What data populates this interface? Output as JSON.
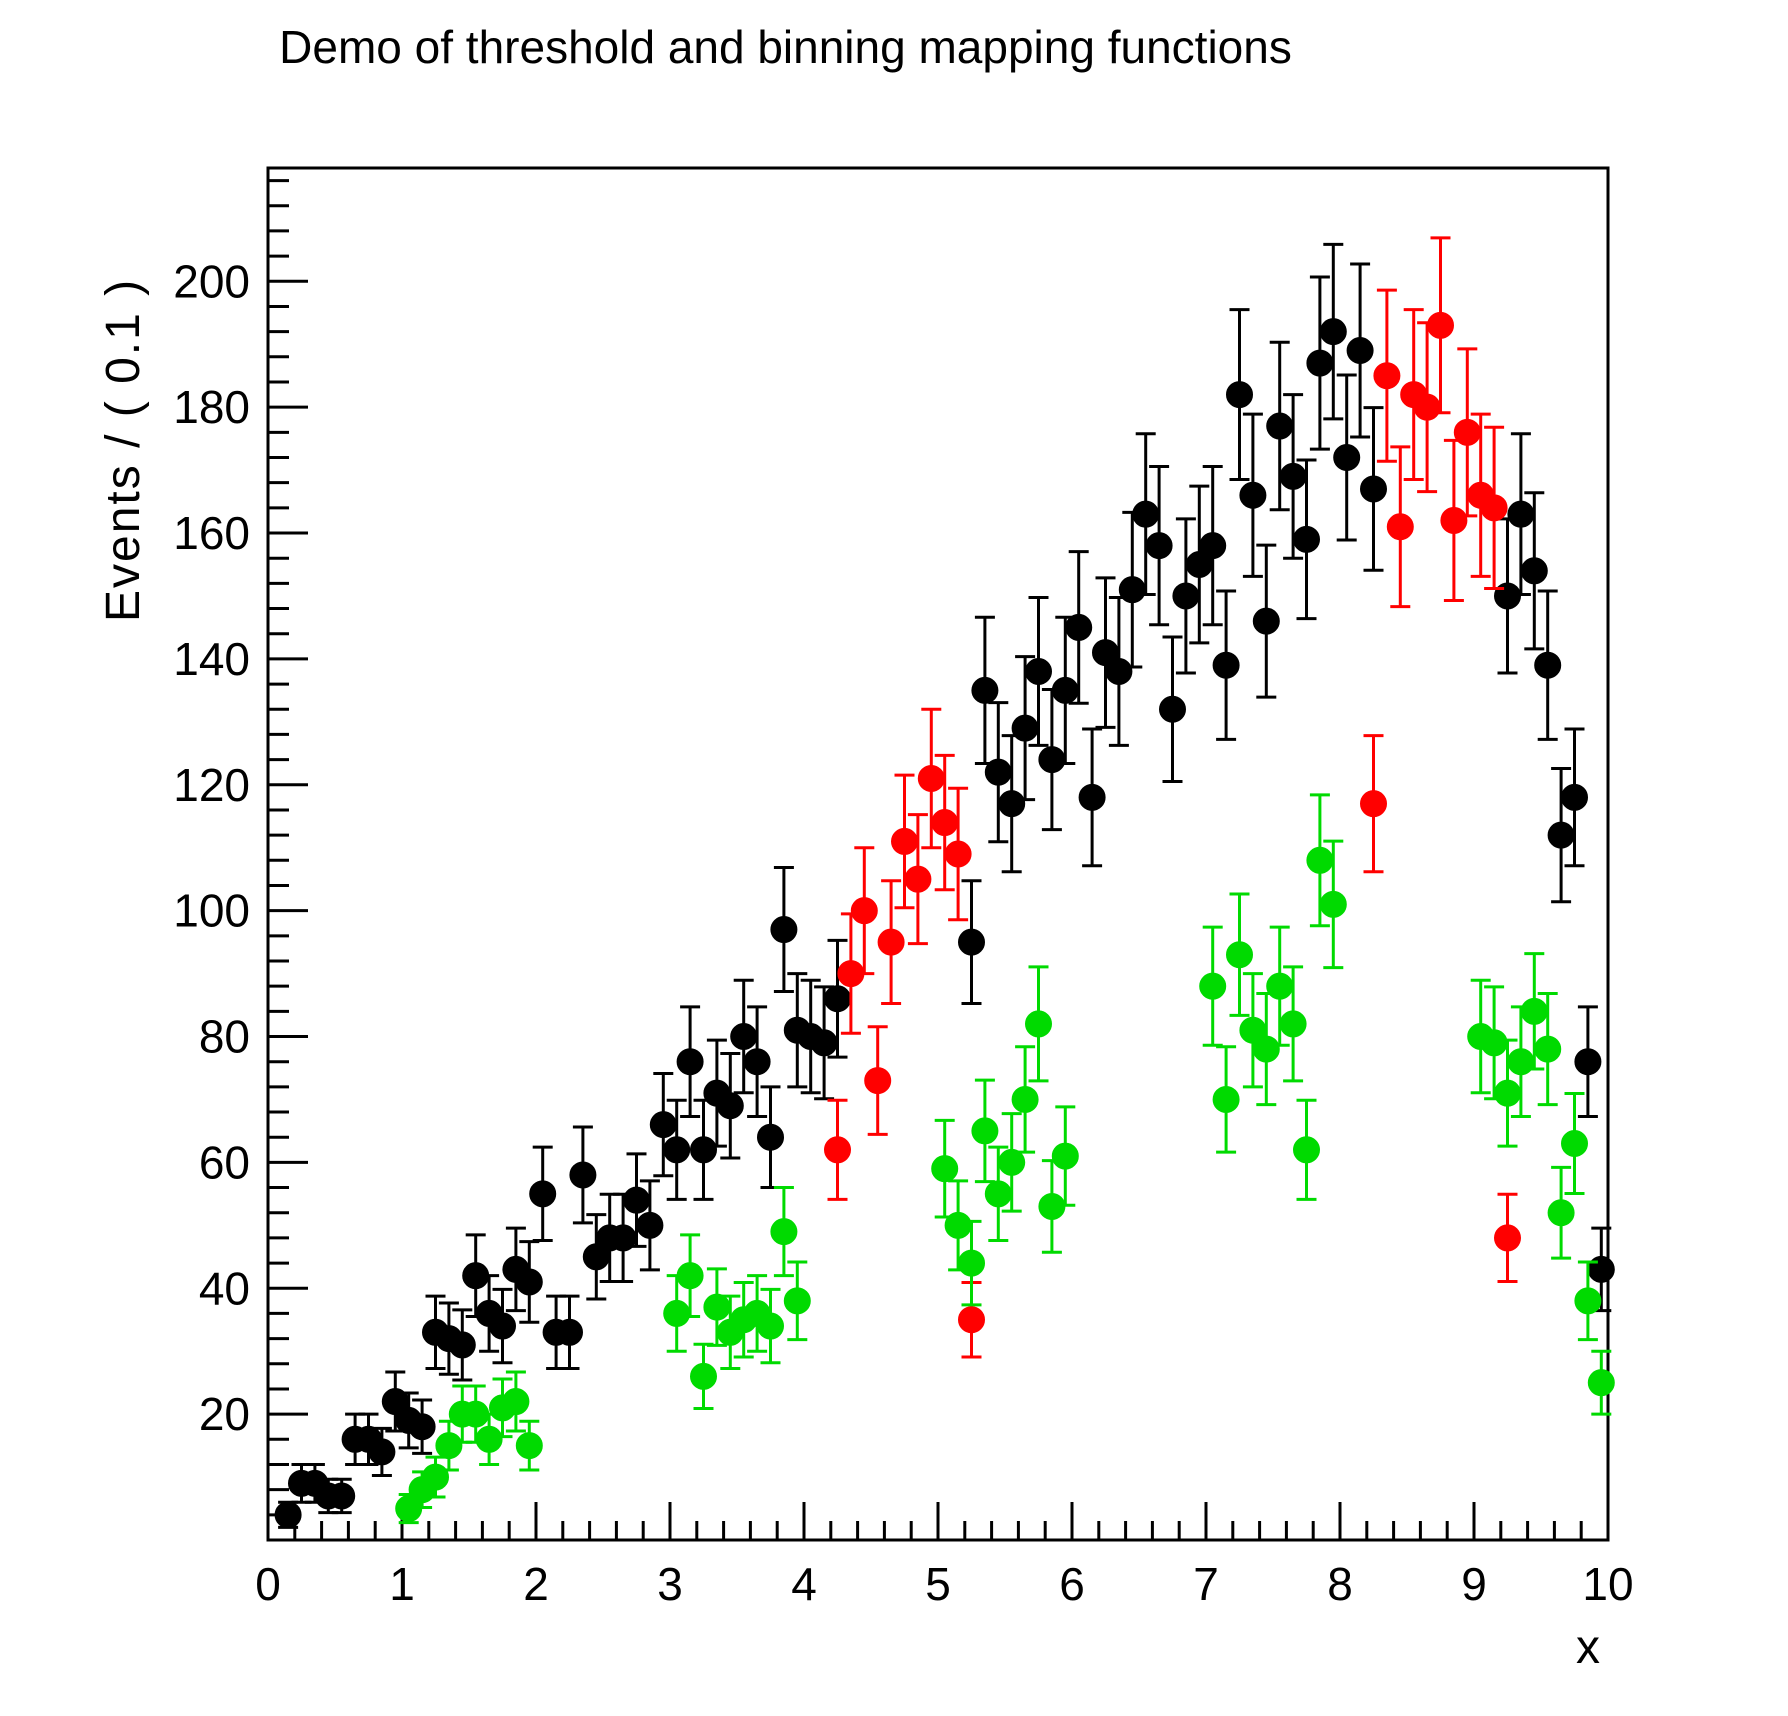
{
  "page": {
    "background": "#ffffff"
  },
  "chart_data": {
    "type": "scatter",
    "title": "Demo of threshold and binning mapping functions",
    "xlabel": "x",
    "ylabel": "Events / ( 0.1 )",
    "xlim": [
      0,
      10
    ],
    "ylim": [
      0,
      218
    ],
    "x_major_ticks": [
      0,
      1,
      2,
      3,
      4,
      5,
      6,
      7,
      8,
      9,
      10
    ],
    "y_major_ticks": [
      20,
      40,
      60,
      80,
      100,
      120,
      140,
      160,
      180,
      200
    ],
    "x_minor_step": 0.2,
    "y_minor_step": 4,
    "grid": false,
    "legend": "none",
    "marker": "filled-circle",
    "error_bars": "poisson-sqrt",
    "series": [
      {
        "name": "series-black",
        "color": "#000000",
        "points": [
          [
            0.15,
            4
          ],
          [
            0.25,
            9
          ],
          [
            0.35,
            9
          ],
          [
            0.45,
            7
          ],
          [
            0.55,
            7
          ],
          [
            0.65,
            16
          ],
          [
            0.75,
            16
          ],
          [
            0.85,
            14
          ],
          [
            0.95,
            22
          ],
          [
            1.05,
            19
          ],
          [
            1.15,
            18
          ],
          [
            1.25,
            33
          ],
          [
            1.35,
            32
          ],
          [
            1.45,
            31
          ],
          [
            1.55,
            42
          ],
          [
            1.65,
            36
          ],
          [
            1.75,
            34
          ],
          [
            1.85,
            43
          ],
          [
            1.95,
            41
          ],
          [
            2.05,
            55
          ],
          [
            2.15,
            33
          ],
          [
            2.25,
            33
          ],
          [
            2.35,
            58
          ],
          [
            2.45,
            45
          ],
          [
            2.55,
            48
          ],
          [
            2.65,
            48
          ],
          [
            2.75,
            54
          ],
          [
            2.85,
            50
          ],
          [
            2.95,
            66
          ],
          [
            3.05,
            62
          ],
          [
            3.15,
            76
          ],
          [
            3.25,
            62
          ],
          [
            3.35,
            71
          ],
          [
            3.45,
            69
          ],
          [
            3.55,
            80
          ],
          [
            3.65,
            76
          ],
          [
            3.75,
            64
          ],
          [
            3.85,
            97
          ],
          [
            3.95,
            81
          ],
          [
            4.05,
            80
          ],
          [
            4.15,
            79
          ],
          [
            4.25,
            86
          ],
          [
            5.25,
            95
          ],
          [
            5.35,
            135
          ],
          [
            5.45,
            122
          ],
          [
            5.55,
            117
          ],
          [
            5.65,
            129
          ],
          [
            5.75,
            138
          ],
          [
            5.85,
            124
          ],
          [
            5.95,
            135
          ],
          [
            6.05,
            145
          ],
          [
            6.15,
            118
          ],
          [
            6.25,
            141
          ],
          [
            6.35,
            138
          ],
          [
            6.45,
            151
          ],
          [
            6.55,
            163
          ],
          [
            6.65,
            158
          ],
          [
            6.75,
            132
          ],
          [
            6.85,
            150
          ],
          [
            6.95,
            155
          ],
          [
            7.05,
            158
          ],
          [
            7.15,
            139
          ],
          [
            7.25,
            182
          ],
          [
            7.35,
            166
          ],
          [
            7.45,
            146
          ],
          [
            7.55,
            177
          ],
          [
            7.65,
            169
          ],
          [
            7.75,
            159
          ],
          [
            7.85,
            187
          ],
          [
            7.95,
            192
          ],
          [
            8.05,
            172
          ],
          [
            8.15,
            189
          ],
          [
            8.25,
            167
          ],
          [
            9.25,
            150
          ],
          [
            9.35,
            163
          ],
          [
            9.45,
            154
          ],
          [
            9.55,
            139
          ],
          [
            9.65,
            112
          ],
          [
            9.75,
            118
          ],
          [
            9.85,
            76
          ],
          [
            9.95,
            43
          ]
        ]
      },
      {
        "name": "series-red",
        "color": "#ff0000",
        "points": [
          [
            4.25,
            62
          ],
          [
            4.35,
            90
          ],
          [
            4.45,
            100
          ],
          [
            4.55,
            73
          ],
          [
            4.65,
            95
          ],
          [
            4.75,
            111
          ],
          [
            4.85,
            105
          ],
          [
            4.95,
            121
          ],
          [
            5.05,
            114
          ],
          [
            5.15,
            109
          ],
          [
            5.25,
            35
          ],
          [
            8.25,
            117
          ],
          [
            8.35,
            185
          ],
          [
            8.45,
            161
          ],
          [
            8.55,
            182
          ],
          [
            8.65,
            180
          ],
          [
            8.75,
            193
          ],
          [
            8.85,
            162
          ],
          [
            8.95,
            176
          ],
          [
            9.05,
            166
          ],
          [
            9.15,
            164
          ],
          [
            9.25,
            48
          ]
        ]
      },
      {
        "name": "series-green",
        "color": "#00da00",
        "points": [
          [
            1.05,
            5
          ],
          [
            1.15,
            8
          ],
          [
            1.25,
            10
          ],
          [
            1.35,
            15
          ],
          [
            1.45,
            20
          ],
          [
            1.55,
            20
          ],
          [
            1.65,
            16
          ],
          [
            1.75,
            21
          ],
          [
            1.85,
            22
          ],
          [
            1.95,
            15
          ],
          [
            3.05,
            36
          ],
          [
            3.15,
            42
          ],
          [
            3.25,
            26
          ],
          [
            3.35,
            37
          ],
          [
            3.45,
            33
          ],
          [
            3.55,
            35
          ],
          [
            3.65,
            36
          ],
          [
            3.75,
            34
          ],
          [
            3.85,
            49
          ],
          [
            3.95,
            38
          ],
          [
            5.05,
            59
          ],
          [
            5.15,
            50
          ],
          [
            5.25,
            44
          ],
          [
            5.35,
            65
          ],
          [
            5.45,
            55
          ],
          [
            5.55,
            60
          ],
          [
            5.65,
            70
          ],
          [
            5.75,
            82
          ],
          [
            5.85,
            53
          ],
          [
            5.95,
            61
          ],
          [
            7.05,
            88
          ],
          [
            7.15,
            70
          ],
          [
            7.25,
            93
          ],
          [
            7.35,
            81
          ],
          [
            7.45,
            78
          ],
          [
            7.55,
            88
          ],
          [
            7.65,
            82
          ],
          [
            7.75,
            62
          ],
          [
            7.85,
            108
          ],
          [
            7.95,
            101
          ],
          [
            9.05,
            80
          ],
          [
            9.15,
            79
          ],
          [
            9.25,
            71
          ],
          [
            9.35,
            76
          ],
          [
            9.45,
            84
          ],
          [
            9.55,
            78
          ],
          [
            9.65,
            52
          ],
          [
            9.75,
            63
          ],
          [
            9.85,
            38
          ],
          [
            9.95,
            25
          ]
        ]
      }
    ]
  }
}
